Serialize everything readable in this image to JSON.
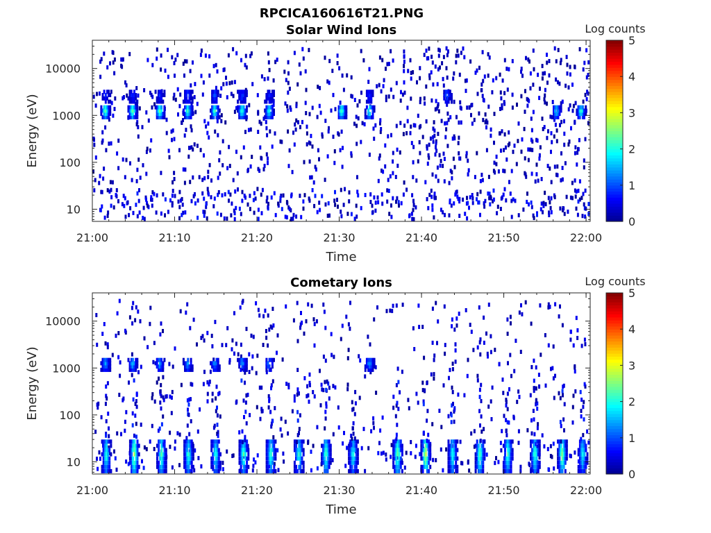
{
  "figure_title": "RPCICA160616T21.PNG",
  "colors": {
    "jet": [
      "#00008f",
      "#0000ff",
      "#0080ff",
      "#00ffff",
      "#80ff80",
      "#ffff00",
      "#ff8000",
      "#ff0000",
      "#800000"
    ],
    "axis": "#262626"
  },
  "chart_data": [
    {
      "type": "heatmap",
      "title": "Solar Wind Ions",
      "xlabel": "Time",
      "ylabel": "Energy (eV)",
      "x_ticks": [
        "21:00",
        "21:10",
        "21:20",
        "21:30",
        "21:40",
        "21:50",
        "22:00"
      ],
      "x_range_minutes": [
        0,
        60.5
      ],
      "y_scale": "log",
      "y_range": [
        5.5,
        40000
      ],
      "y_ticks": [
        {
          "value": 10,
          "label": "10"
        },
        {
          "value": 100,
          "label": "100"
        },
        {
          "value": 1000,
          "label": "1000"
        },
        {
          "value": 10000,
          "label": "10000"
        }
      ],
      "colorbar": {
        "label": "Log counts",
        "range": [
          0,
          5
        ],
        "ticks": [
          "0",
          "1",
          "2",
          "3",
          "4",
          "5"
        ]
      },
      "features": [
        {
          "desc": "solar wind proton peaks (~1400 eV)",
          "energy": 1400,
          "minutes": [
            1.5,
            4.8,
            8.1,
            11.5,
            14.8,
            18.1,
            21.4,
            30.2,
            33.6,
            56.3,
            59.3
          ],
          "peak_log_counts": [
            2.2,
            2.3,
            2.3,
            2.0,
            2.0,
            2.0,
            1.9,
            2.1,
            2.0,
            1.6,
            1.9
          ]
        },
        {
          "desc": "secondary peaks (~3000 eV)",
          "energy": 3000,
          "minutes": [
            1.5,
            4.8,
            8.1,
            11.5,
            14.8,
            18.1,
            21.4,
            33.6,
            43
          ],
          "peak_log_counts": [
            0.6,
            0.6,
            0.6,
            0.8,
            0.8,
            0.7,
            0.6,
            0.6,
            0.9
          ]
        }
      ],
      "background": {
        "low_energy_band_eV": [
          6,
          30
        ],
        "scatter_density": "sparse, denser after 21:38"
      }
    },
    {
      "type": "heatmap",
      "title": "Cometary Ions",
      "xlabel": "Time",
      "ylabel": "Energy (eV)",
      "x_ticks": [
        "21:00",
        "21:10",
        "21:20",
        "21:30",
        "21:40",
        "21:50",
        "22:00"
      ],
      "x_range_minutes": [
        0,
        60.5
      ],
      "y_scale": "log",
      "y_range": [
        5.5,
        40000
      ],
      "y_ticks": [
        {
          "value": 10,
          "label": "10"
        },
        {
          "value": 100,
          "label": "100"
        },
        {
          "value": 1000,
          "label": "1000"
        },
        {
          "value": 10000,
          "label": "10000"
        }
      ],
      "colorbar": {
        "label": "Log counts",
        "range": [
          0,
          5
        ],
        "ticks": [
          "0",
          "1",
          "2",
          "3",
          "4",
          "5"
        ]
      },
      "features": [
        {
          "desc": "low-energy cometary ion bursts (8-30 eV)",
          "energy": 15,
          "minutes": [
            1.6,
            5.0,
            8.3,
            11.6,
            14.9,
            18.3,
            21.6,
            25.0,
            28.3,
            31.6,
            37.0,
            40.4,
            43.7,
            47.0,
            50.4,
            53.7,
            57.0,
            59.5
          ],
          "peak_log_counts": [
            1.9,
            2.6,
            2.1,
            2.0,
            1.8,
            2.1,
            2.0,
            1.9,
            2.1,
            1.8,
            2.3,
            2.7,
            1.8,
            2.2,
            2.1,
            2.0,
            2.4,
            1.7
          ]
        },
        {
          "desc": "~1400 eV peaks",
          "energy": 1400,
          "minutes": [
            1.5,
            4.8,
            8.1,
            11.5,
            14.8,
            18.1,
            21.4,
            33.6
          ],
          "peak_log_counts": [
            1.2,
            1.4,
            1.3,
            1.2,
            1.2,
            1.2,
            1.1,
            1.2
          ]
        }
      ]
    }
  ]
}
